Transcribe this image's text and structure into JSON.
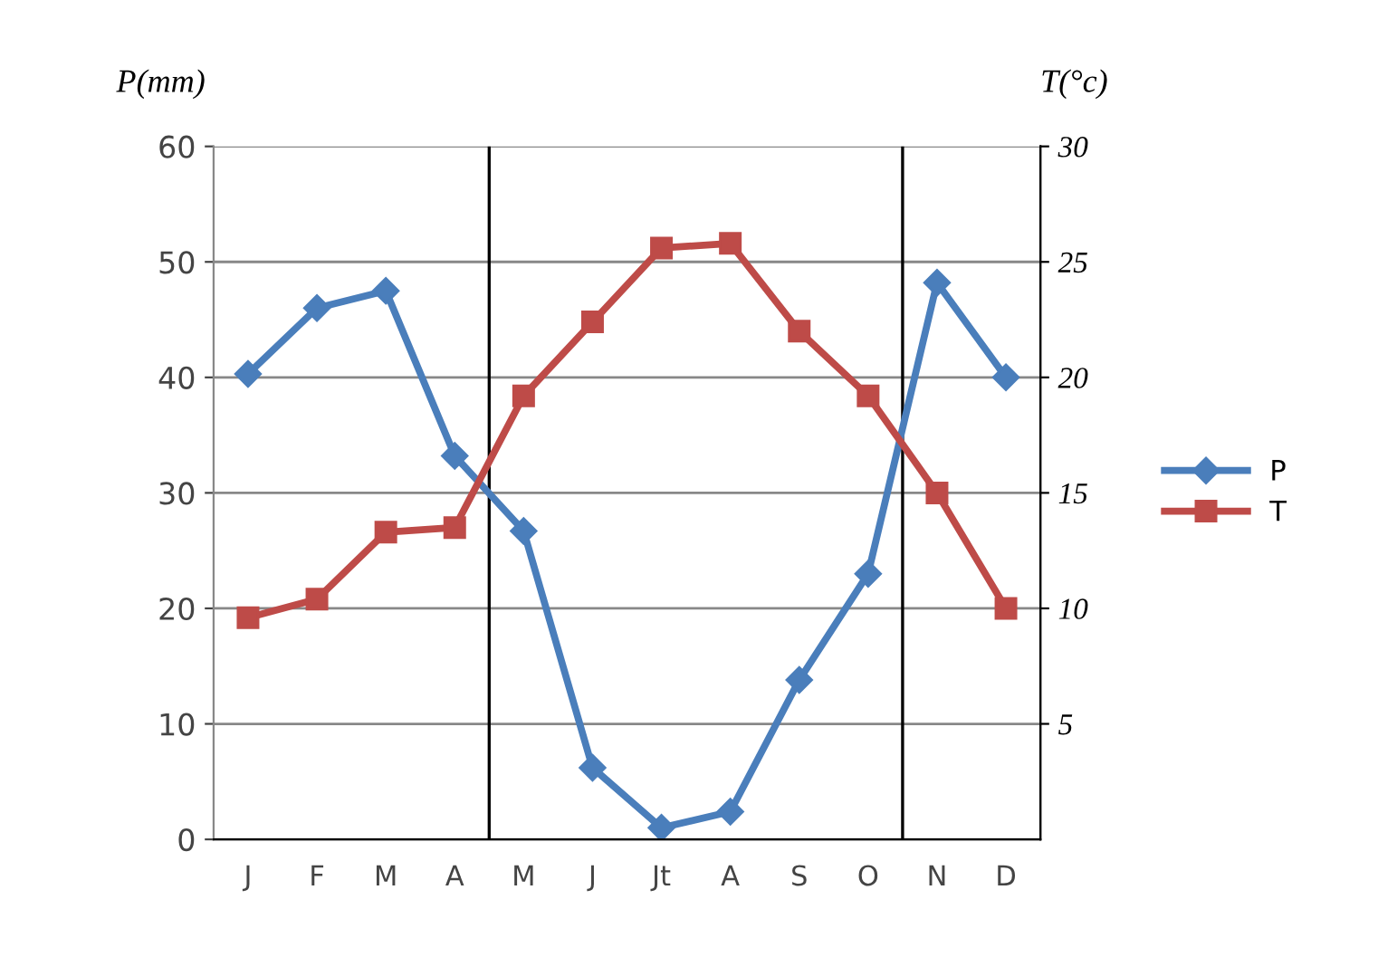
{
  "chart_data": {
    "type": "line",
    "ylabel": "P(mm)",
    "y2label": "T(°c)",
    "categories": [
      "J",
      "F",
      "M",
      "A",
      "M",
      "J",
      "Jt",
      "A",
      "S",
      "O",
      "N",
      "D"
    ],
    "series": [
      {
        "name": "P",
        "color": "#4a7ebb",
        "marker": "diamond",
        "values": [
          40.3,
          46,
          47.5,
          33.2,
          26.7,
          6.2,
          1,
          2.4,
          13.8,
          23,
          48.2,
          40
        ]
      },
      {
        "name": "T",
        "color": "#be4b48",
        "marker": "square",
        "axis": "y2",
        "values": [
          9.6,
          10.4,
          13.3,
          13.5,
          19.2,
          22.4,
          25.6,
          25.8,
          22,
          19.2,
          15,
          10
        ]
      }
    ],
    "ylim": [
      0,
      60
    ],
    "yticks": [
      0,
      10,
      20,
      30,
      40,
      50,
      60
    ],
    "y2lim": [
      0,
      30
    ],
    "y2ticks": [
      5,
      10,
      15,
      20,
      25,
      30
    ],
    "grid": "y",
    "legend": "right"
  }
}
